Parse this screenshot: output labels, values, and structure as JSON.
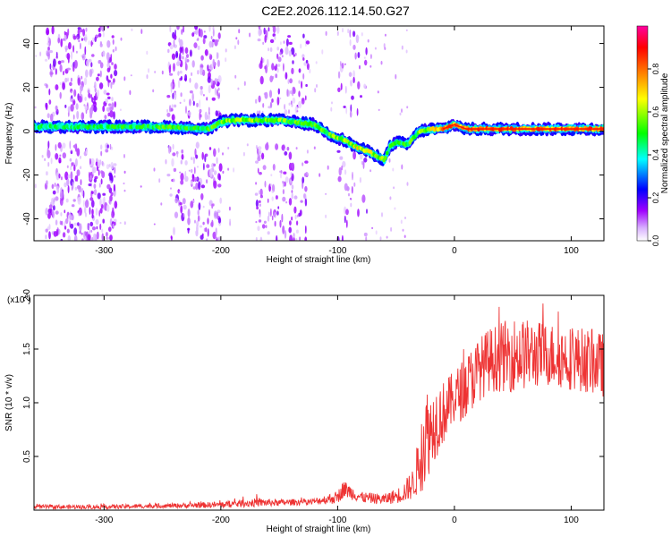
{
  "title": "C2E2.2026.112.14.50.G27",
  "chart_data": [
    {
      "type": "heatmap",
      "xlabel": "Height of straight line (km)",
      "ylabel": "Frequency (Hz)",
      "xlim": [
        -360,
        128
      ],
      "ylim": [
        -50,
        48
      ],
      "xticks": [
        -300,
        -200,
        -100,
        0,
        100
      ],
      "yticks": [
        -40,
        -20,
        0,
        20,
        40
      ],
      "colorbar": {
        "label": "Normalized spectral amplitude",
        "range": [
          0,
          1
        ],
        "ticks": [
          "0.0",
          "0.2",
          "0.4",
          "0.6",
          "0.8"
        ],
        "colors": [
          "#ffffff",
          "#a000ff",
          "#0000ff",
          "#00ffff",
          "#00ff00",
          "#ffff00",
          "#ff8000",
          "#ff0000",
          "#ff00a0"
        ]
      },
      "ridge": {
        "x": [
          -360,
          -300,
          -250,
          -210,
          -200,
          -190,
          -150,
          -120,
          -105,
          -95,
          -85,
          -75,
          -60,
          -55,
          -50,
          -40,
          -30,
          -20,
          -10,
          0,
          10,
          50,
          100,
          128
        ],
        "frequency": [
          2,
          2,
          2,
          1,
          4,
          5,
          5,
          3,
          -2,
          -4,
          -7,
          -9,
          -13,
          -7,
          -5,
          -6,
          0,
          1,
          1,
          3,
          1,
          1,
          1,
          1
        ],
        "amplitude": [
          0.5,
          0.5,
          0.55,
          0.55,
          0.6,
          0.65,
          0.6,
          0.6,
          0.6,
          0.65,
          0.7,
          0.7,
          0.6,
          0.55,
          0.5,
          0.55,
          0.6,
          0.7,
          0.8,
          0.85,
          0.85,
          0.85,
          0.85,
          0.85
        ]
      }
    },
    {
      "type": "line",
      "xlabel": "Height of straight line (km)",
      "ylabel": "SNR (10 * v/v)",
      "yscale_label": "(x10",
      "yscale_exp": "4",
      "yscale_close": ")",
      "xlim": [
        -360,
        128
      ],
      "ylim": [
        0,
        2.0
      ],
      "xticks": [
        -300,
        -200,
        -100,
        0,
        100
      ],
      "yticks": [
        "0.5",
        "1.0",
        "1.5",
        "2.0"
      ],
      "ytick_values": [
        0.5,
        1.0,
        1.5,
        2.0
      ],
      "color": "#ee3333",
      "envelope": {
        "x": [
          -360,
          -300,
          -250,
          -200,
          -170,
          -150,
          -120,
          -100,
          -95,
          -80,
          -60,
          -45,
          -35,
          -30,
          -25,
          -20,
          -15,
          -10,
          0,
          10,
          20,
          30,
          50,
          80,
          110,
          128
        ],
        "mean": [
          0.03,
          0.03,
          0.04,
          0.05,
          0.07,
          0.07,
          0.08,
          0.12,
          0.2,
          0.12,
          0.1,
          0.15,
          0.25,
          0.45,
          0.7,
          0.75,
          0.85,
          0.9,
          1.05,
          1.15,
          1.3,
          1.4,
          1.45,
          1.45,
          1.4,
          1.35
        ],
        "spread": [
          0.02,
          0.02,
          0.02,
          0.03,
          0.04,
          0.03,
          0.03,
          0.06,
          0.08,
          0.05,
          0.05,
          0.08,
          0.15,
          0.3,
          0.5,
          0.35,
          0.35,
          0.3,
          0.25,
          0.3,
          0.3,
          0.3,
          0.35,
          0.3,
          0.3,
          0.3
        ]
      }
    }
  ]
}
